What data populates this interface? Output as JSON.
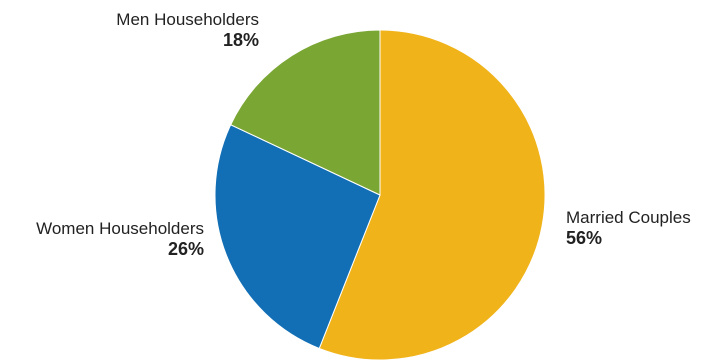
{
  "colors": {
    "married": "#F0B31A",
    "women": "#126FB6",
    "men": "#7AA634"
  },
  "chart_data": {
    "type": "pie",
    "title": "",
    "start_angle_deg": 0,
    "direction": "clockwise",
    "slices": [
      {
        "name": "Married Couples",
        "value": 56,
        "value_label": "56%",
        "color": "#F0B31A"
      },
      {
        "name": "Women Householders",
        "value": 26,
        "value_label": "26%",
        "color": "#126FB6"
      },
      {
        "name": "Men Householders",
        "value": 18,
        "value_label": "18%",
        "color": "#7AA634"
      }
    ]
  }
}
